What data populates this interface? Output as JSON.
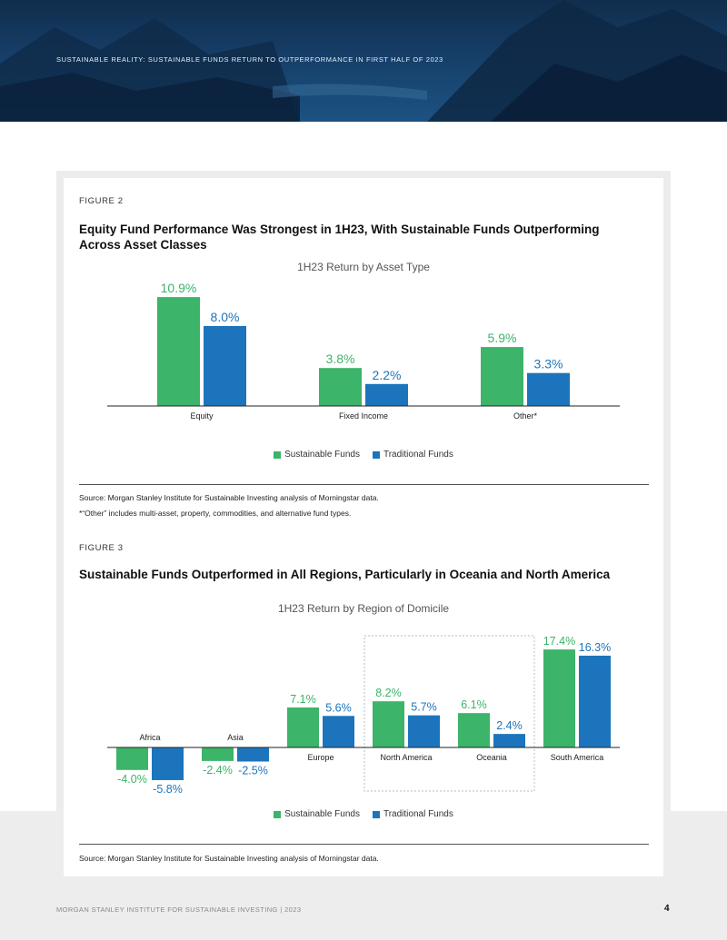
{
  "header": {
    "report_title": "SUSTAINABLE REALITY: SUSTAINABLE FUNDS RETURN TO OUTPERFORMANCE IN FIRST HALF OF 2023"
  },
  "colors": {
    "sustainable": "#3cb46a",
    "traditional": "#1c75bc",
    "header_bg": "#17426d"
  },
  "figure2": {
    "label": "FIGURE 2",
    "title": "Equity Fund Performance Was Strongest in 1H23, With Sustainable Funds Outperforming Across Asset Classes",
    "legend": [
      "Sustainable Funds",
      "Traditional Funds"
    ],
    "source": "Source: Morgan Stanley Institute for Sustainable Investing analysis of Morningstar data.",
    "note": "*“Other” includes multi-asset, property, commodities, and alternative fund types."
  },
  "figure3": {
    "label": "FIGURE 3",
    "title": "Sustainable Funds Outperformed in All Regions, Particularly in Oceania and North America",
    "legend": [
      "Sustainable Funds",
      "Traditional Funds"
    ],
    "source": "Source: Morgan Stanley Institute for Sustainable Investing analysis of Morningstar data."
  },
  "chart_data": [
    {
      "type": "bar",
      "title": "1H23 Return by Asset Type",
      "categories": [
        "Equity",
        "Fixed Income",
        "Other*"
      ],
      "series": [
        {
          "name": "Sustainable Funds",
          "values": [
            10.9,
            3.8,
            5.9
          ],
          "labels": [
            "10.9%",
            "3.8%",
            "5.9%"
          ]
        },
        {
          "name": "Traditional Funds",
          "values": [
            8.0,
            2.2,
            3.3
          ],
          "labels": [
            "8.0%",
            "2.2%",
            "3.3%"
          ]
        }
      ],
      "xlabel": "",
      "ylabel": "",
      "ylim": [
        0,
        12
      ],
      "grid": false,
      "legend_position": "bottom"
    },
    {
      "type": "bar",
      "title": "1H23 Return by Region of Domicile",
      "categories": [
        "Africa",
        "Asia",
        "Europe",
        "North America",
        "Oceania",
        "South America"
      ],
      "series": [
        {
          "name": "Sustainable Funds",
          "values": [
            -4.0,
            -2.4,
            7.1,
            8.2,
            6.1,
            17.4
          ],
          "labels": [
            "-4.0%",
            "-2.4%",
            "7.1%",
            "8.2%",
            "6.1%",
            "17.4%"
          ]
        },
        {
          "name": "Traditional Funds",
          "values": [
            -5.8,
            -2.5,
            5.6,
            5.7,
            2.4,
            16.3
          ],
          "labels": [
            "-5.8%",
            "-2.5%",
            "5.6%",
            "5.7%",
            "2.4%",
            "16.3%"
          ]
        }
      ],
      "highlighted_categories": [
        "North America",
        "Oceania"
      ],
      "xlabel": "",
      "ylabel": "",
      "ylim": [
        -6,
        18
      ],
      "grid": false,
      "legend_position": "bottom"
    }
  ],
  "footer": {
    "text": "MORGAN STANLEY INSTITUTE FOR SUSTAINABLE INVESTING   |   2023",
    "page_number": "4"
  }
}
